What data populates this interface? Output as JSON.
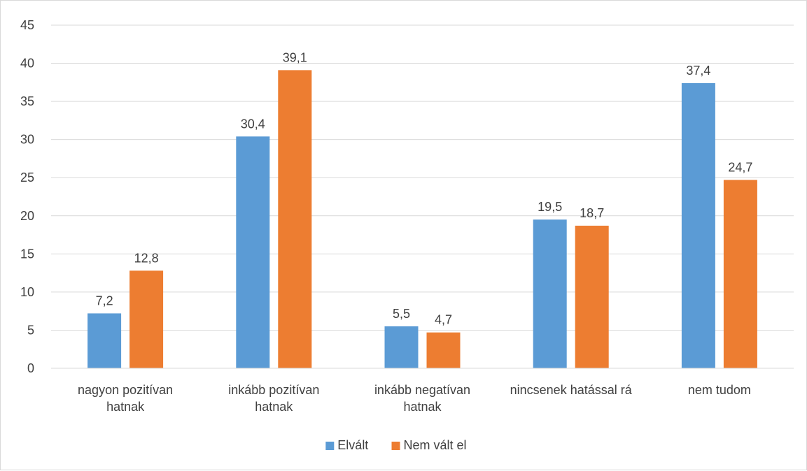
{
  "chart_data": {
    "type": "bar",
    "categories": [
      [
        "nagyon pozitívan",
        "hatnak"
      ],
      [
        "inkább pozitívan",
        "hatnak"
      ],
      [
        "inkább negatívan",
        "hatnak"
      ],
      [
        "nincsenek hatással rá"
      ],
      [
        "nem tudom"
      ]
    ],
    "series": [
      {
        "name": "Elvált",
        "color": "#5b9bd5",
        "values": [
          7.2,
          30.4,
          5.5,
          19.5,
          37.4
        ],
        "labels": [
          "7,2",
          "30,4",
          "5,5",
          "19,5",
          "37,4"
        ]
      },
      {
        "name": "Nem vált el",
        "color": "#ed7d31",
        "values": [
          12.8,
          39.1,
          4.7,
          18.7,
          24.7
        ],
        "labels": [
          "12,8",
          "39,1",
          "4,7",
          "18,7",
          "24,7"
        ]
      }
    ],
    "ylim": [
      0,
      45
    ],
    "yticks": [
      0,
      5,
      10,
      15,
      20,
      25,
      30,
      35,
      40,
      45
    ],
    "grid": true,
    "legend": "bottom-center",
    "gridColor": "#d9d9d9",
    "axisColor": "#d9d9d9"
  }
}
